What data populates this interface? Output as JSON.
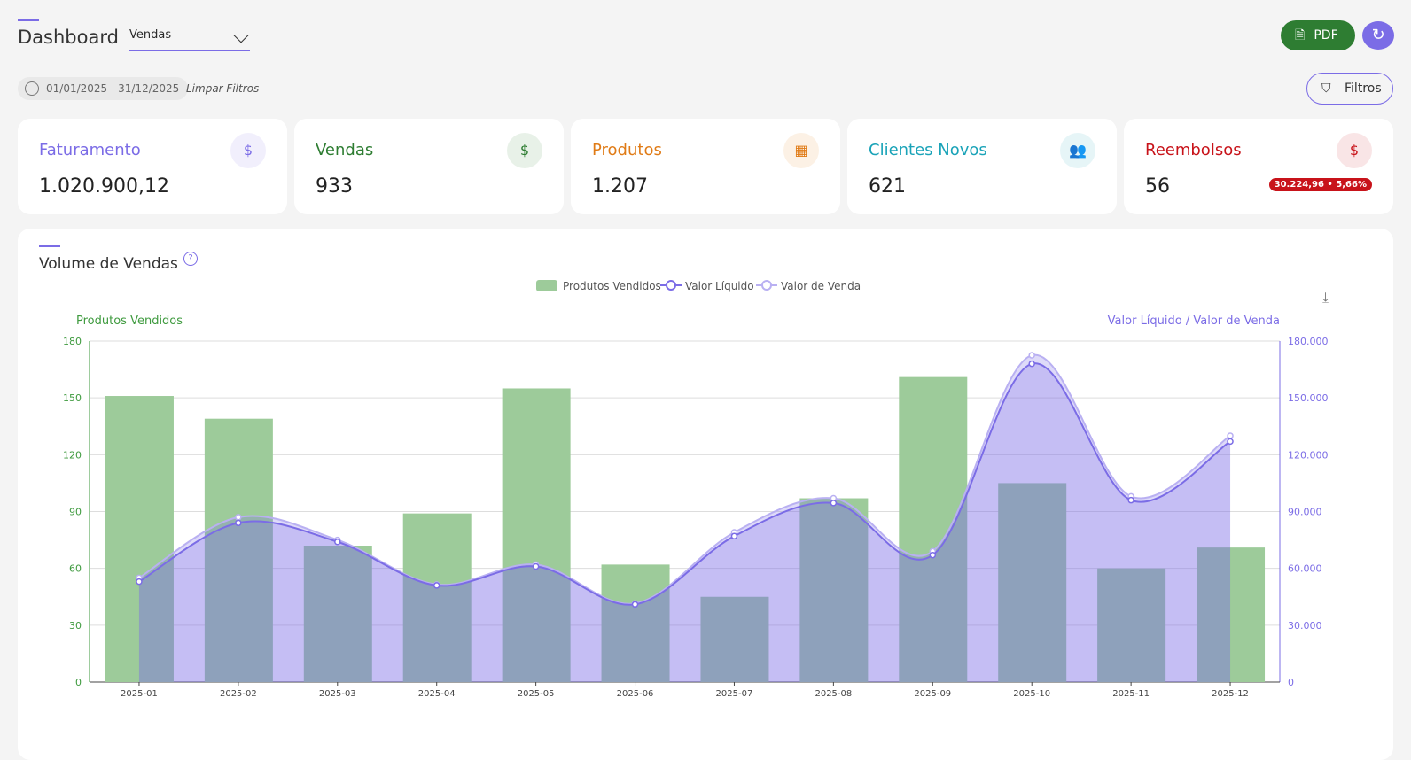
{
  "header": {
    "title": "Dashboard",
    "select_value": "Vendas",
    "pdf_label": "PDF",
    "refresh_icon": "refresh-icon"
  },
  "filters": {
    "date_range": "01/01/2025 - 31/12/2025",
    "clear_label": "Limpar Filtros",
    "filters_label": "Filtros"
  },
  "cards": [
    {
      "label": "Faturamento",
      "value": "1.020.900,12",
      "color": "#7b6ce6",
      "icon": "money-bag-icon"
    },
    {
      "label": "Vendas",
      "value": "933",
      "color": "#2e7d32",
      "icon": "hand-dollar-icon"
    },
    {
      "label": "Produtos",
      "value": "1.207",
      "color": "#e07b16",
      "icon": "boxes-icon"
    },
    {
      "label": "Clientes Novos",
      "value": "621",
      "color": "#1aa3b8",
      "icon": "users-icon"
    },
    {
      "label": "Reembolsos",
      "value": "56",
      "color": "#c8131a",
      "icon": "refund-icon",
      "badge": "30.224,96 • 5,66%"
    }
  ],
  "panel": {
    "title": "Volume de Vendas"
  },
  "chart_data": {
    "type": "bar+line",
    "legend": [
      "Produtos Vendidos",
      "Valor Líquido",
      "Valor de Venda"
    ],
    "legend_position": "top",
    "y_left_label": "Produtos Vendidos",
    "y_right_label": "Valor Líquido / Valor de Venda",
    "y_left_ticks": [
      "0",
      "30",
      "60",
      "90",
      "120",
      "150",
      "180"
    ],
    "y_right_ticks": [
      "0",
      "30.000",
      "60.000",
      "90.000",
      "120.000",
      "150.000",
      "180.000"
    ],
    "ylim_left": [
      0,
      180
    ],
    "ylim_right": [
      0,
      180000
    ],
    "categories": [
      "2025-01",
      "2025-02",
      "2025-03",
      "2025-04",
      "2025-05",
      "2025-06",
      "2025-07",
      "2025-08",
      "2025-09",
      "2025-10",
      "2025-11",
      "2025-12"
    ],
    "series": [
      {
        "name": "Produtos Vendidos",
        "type": "bar",
        "axis": "left",
        "color": "#9dcb9a",
        "values": [
          151,
          139,
          72,
          89,
          155,
          62,
          45,
          97,
          161,
          105,
          60,
          71
        ]
      },
      {
        "name": "Valor Líquido",
        "type": "line",
        "axis": "right",
        "color": "#7b6ce6",
        "values": [
          53000,
          84000,
          74000,
          51000,
          61000,
          41000,
          77000,
          94500,
          67000,
          168000,
          96000,
          127000
        ]
      },
      {
        "name": "Valor de Venda",
        "type": "line",
        "axis": "right",
        "color": "#b9b0f2",
        "values": [
          55000,
          87000,
          75000,
          51500,
          62000,
          41500,
          79000,
          97000,
          69000,
          172500,
          98000,
          130000
        ]
      }
    ],
    "grid": true
  }
}
